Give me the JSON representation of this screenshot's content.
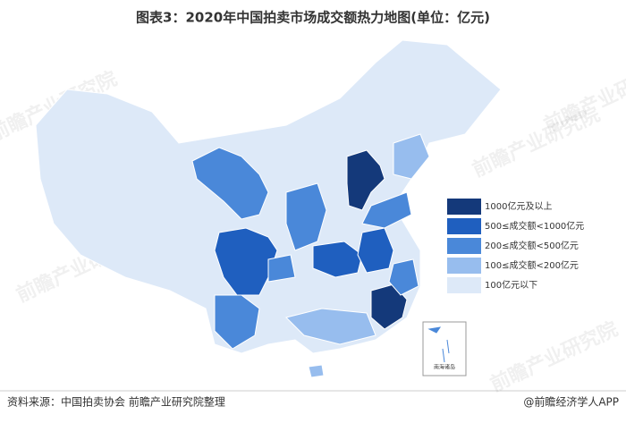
{
  "chart_data": {
    "type": "choropleth",
    "title": "图表3：2020年中国拍卖市场成交额热力地图(单位：亿元)",
    "legend": [
      {
        "label": "1000亿元及以上",
        "color": "#14397a"
      },
      {
        "label": "500≤成交额<1000亿元",
        "color": "#1f5fbf"
      },
      {
        "label": "200≤成交额<500亿元",
        "color": "#4a88d9"
      },
      {
        "label": "100≤成交额<200亿元",
        "color": "#97bdee"
      },
      {
        "label": "100亿元以下",
        "color": "#dde9f8"
      }
    ],
    "inset_label": "南海诸岛",
    "watermark": "前瞻产业研究院",
    "source": "资料来源：中国拍卖协会 前瞻产业研究院整理",
    "brand": "@前瞻经济学人APP"
  }
}
